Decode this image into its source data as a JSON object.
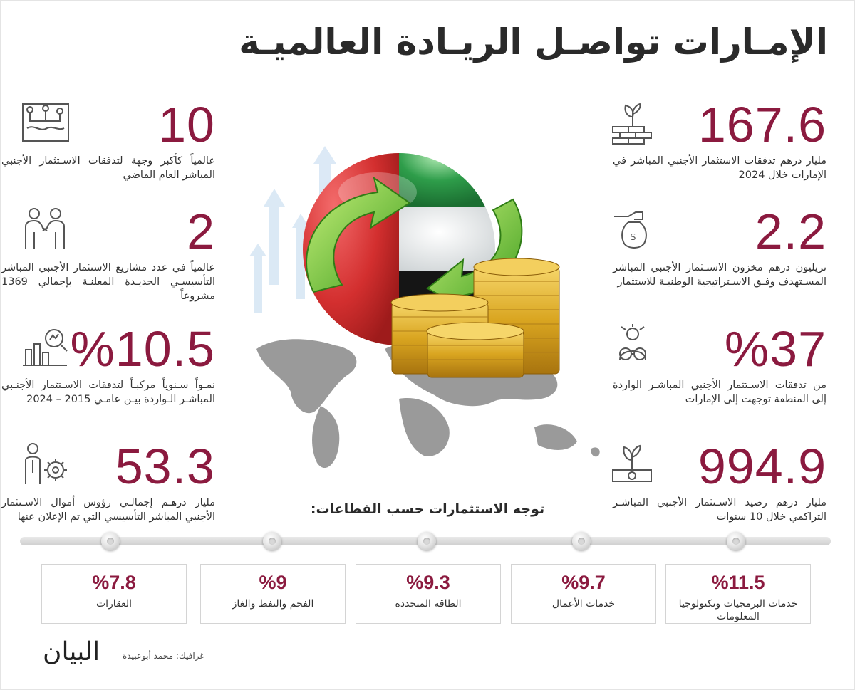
{
  "title": "الإمـارات تواصـل الريـادة العالميـة",
  "stats_right": [
    {
      "value": "167.6",
      "text": "مليار درهم تدفقات الاستثمار الأجنبي المباشر في الإمارات خلال 2024",
      "icon": "plant-bricks-icon"
    },
    {
      "value": "2.2",
      "text": "تريليون درهم مخزون الاستـثمار الأجنبي المباشر المسـتهدف وفـق الاسـتراتيجية الوطنيـة للاستثمار",
      "icon": "hand-money-bag-icon"
    },
    {
      "value": "%37",
      "text": "من تدفقات الاسـتثمار الأجنبي المباشـر الواردة إلى المنطقة توجهت إلى الإمارات",
      "icon": "businessman-binoculars-icon"
    },
    {
      "value": "994.9",
      "text": "مليار درهم رصيد الاسـتثمار الأجنبي المباشـر التراكمي خلال 10 سنوات",
      "icon": "plant-money-icon"
    }
  ],
  "stats_left": [
    {
      "value": "10",
      "text": "عالمياً كأكبر وجهة لتدفقات الاسـتثمار الأجنبي المباشر العام الماضي",
      "icon": "network-map-icon"
    },
    {
      "value": "2",
      "text": "عالمياً في عدد مشاريع الاستثمار الأجنبي المباشر التأسيسـي الجديـدة المعلنـة بإجمالي 1369 مشروعاً",
      "icon": "handshake-people-icon"
    },
    {
      "value": "%10.5",
      "text": "نمـواً سـنوياً مركبـاً لتدفقات الاسـتثمار الأجنـبي المباشـر الـواردة بيـن عامـي 2015 – 2024",
      "icon": "chart-magnifier-icon"
    },
    {
      "value": "53.3",
      "text": "مليار درهـم إجمالـي رؤوس أموال الاسـتثمار الأجنبي المباشر التأسيسي التي تم الإعلان عنها",
      "icon": "person-gear-icon"
    }
  ],
  "sector_heading": "توجه الاستثمارات حسب القطاعات:",
  "sectors": [
    {
      "pct": "%11.5",
      "label": "خدمات البرمجيات وتكنولوجيا المعلومات"
    },
    {
      "pct": "%9.7",
      "label": "خدمات الأعمال"
    },
    {
      "pct": "%9.3",
      "label": "الطاقة المتجددة"
    },
    {
      "pct": "%9",
      "label": "الفحم والنفط والغاز"
    },
    {
      "pct": "%7.8",
      "label": "العقارات"
    }
  ],
  "footer": {
    "logo": "البيان",
    "credit": "غرافيك: محمد أبوعبيدة"
  },
  "colors": {
    "accent": "#8b1a3f",
    "uae_red": "#d32f2f",
    "uae_green": "#2e9d4a",
    "coin_gold": "#d9a520"
  }
}
